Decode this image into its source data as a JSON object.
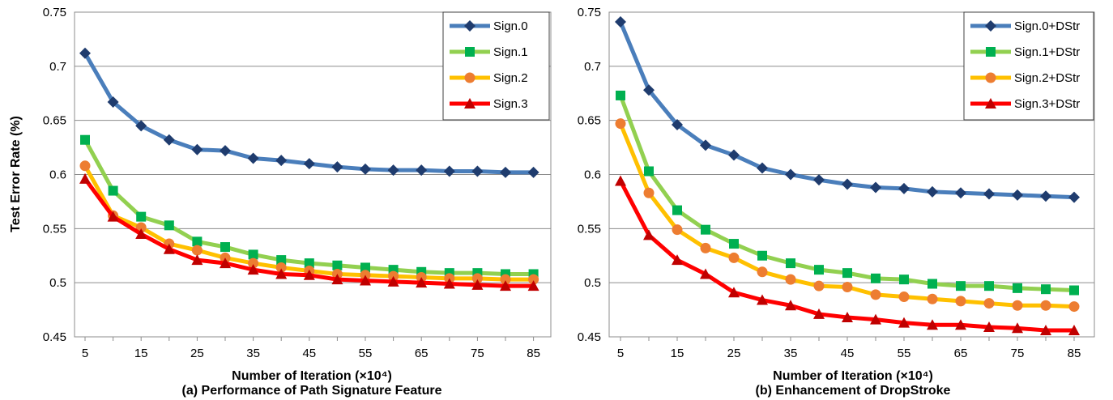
{
  "chart_data": [
    {
      "type": "line",
      "caption": "(a) Performance of Path Signature Feature",
      "xlabel": "Number of Iteration (×10⁴)",
      "ylabel": "Test Error Rate (%)",
      "ylim": [
        0.45,
        0.75
      ],
      "y_ticks": [
        "0.45",
        "0.5",
        "0.55",
        "0.6",
        "0.65",
        "0.7",
        "0.75"
      ],
      "x_tick_labels": [
        "5",
        "15",
        "25",
        "35",
        "45",
        "55",
        "65",
        "75",
        "85"
      ],
      "x": [
        5,
        10,
        15,
        20,
        25,
        30,
        35,
        40,
        45,
        50,
        55,
        60,
        65,
        70,
        75,
        80,
        85
      ],
      "grid": true,
      "legend_position": "top-right",
      "series": [
        {
          "name": "Sign.0",
          "color": "#4a7ebb",
          "marker_color": "#1f3c6e",
          "marker": "diamond",
          "values": [
            0.712,
            0.667,
            0.645,
            0.632,
            0.623,
            0.622,
            0.615,
            0.613,
            0.61,
            0.607,
            0.605,
            0.604,
            0.604,
            0.603,
            0.603,
            0.602,
            0.602
          ]
        },
        {
          "name": "Sign.1",
          "color": "#92d050",
          "marker_color": "#00b050",
          "marker": "square",
          "values": [
            0.632,
            0.585,
            0.561,
            0.553,
            0.538,
            0.533,
            0.526,
            0.521,
            0.518,
            0.516,
            0.514,
            0.512,
            0.51,
            0.509,
            0.509,
            0.508,
            0.508
          ]
        },
        {
          "name": "Sign.2",
          "color": "#ffc000",
          "marker_color": "#ed7d31",
          "marker": "circle",
          "values": [
            0.608,
            0.562,
            0.551,
            0.536,
            0.53,
            0.523,
            0.518,
            0.514,
            0.511,
            0.508,
            0.507,
            0.506,
            0.505,
            0.504,
            0.504,
            0.503,
            0.503
          ]
        },
        {
          "name": "Sign.3",
          "color": "#ff0000",
          "marker_color": "#c00000",
          "marker": "triangle",
          "values": [
            0.596,
            0.561,
            0.545,
            0.531,
            0.521,
            0.518,
            0.512,
            0.508,
            0.507,
            0.503,
            0.502,
            0.501,
            0.5,
            0.499,
            0.498,
            0.497,
            0.497
          ]
        }
      ]
    },
    {
      "type": "line",
      "caption": "(b) Enhancement of DropStroke",
      "xlabel": "Number of Iteration (×10⁴)",
      "ylabel": "",
      "ylim": [
        0.45,
        0.75
      ],
      "y_ticks": [
        "0.45",
        "0.5",
        "0.55",
        "0.6",
        "0.65",
        "0.7",
        "0.75"
      ],
      "x_tick_labels": [
        "5",
        "15",
        "25",
        "35",
        "45",
        "55",
        "65",
        "75",
        "85"
      ],
      "x": [
        5,
        10,
        15,
        20,
        25,
        30,
        35,
        40,
        45,
        50,
        55,
        60,
        65,
        70,
        75,
        80,
        85
      ],
      "grid": true,
      "legend_position": "top-right",
      "series": [
        {
          "name": "Sign.0+DStr",
          "color": "#4a7ebb",
          "marker_color": "#1f3c6e",
          "marker": "diamond",
          "values": [
            0.741,
            0.678,
            0.646,
            0.627,
            0.618,
            0.606,
            0.6,
            0.595,
            0.591,
            0.588,
            0.587,
            0.584,
            0.583,
            0.582,
            0.581,
            0.58,
            0.579
          ]
        },
        {
          "name": "Sign.1+DStr",
          "color": "#92d050",
          "marker_color": "#00b050",
          "marker": "square",
          "values": [
            0.673,
            0.603,
            0.567,
            0.549,
            0.536,
            0.525,
            0.518,
            0.512,
            0.509,
            0.504,
            0.503,
            0.499,
            0.497,
            0.497,
            0.495,
            0.494,
            0.493
          ]
        },
        {
          "name": "Sign.2+DStr",
          "color": "#ffc000",
          "marker_color": "#ed7d31",
          "marker": "circle",
          "values": [
            0.647,
            0.583,
            0.549,
            0.532,
            0.523,
            0.51,
            0.503,
            0.497,
            0.496,
            0.489,
            0.487,
            0.485,
            0.483,
            0.481,
            0.479,
            0.479,
            0.478
          ]
        },
        {
          "name": "Sign.3+DStr",
          "color": "#ff0000",
          "marker_color": "#c00000",
          "marker": "triangle",
          "values": [
            0.594,
            0.544,
            0.521,
            0.508,
            0.491,
            0.484,
            0.479,
            0.471,
            0.468,
            0.466,
            0.463,
            0.461,
            0.461,
            0.459,
            0.458,
            0.456,
            0.456
          ]
        }
      ]
    }
  ]
}
